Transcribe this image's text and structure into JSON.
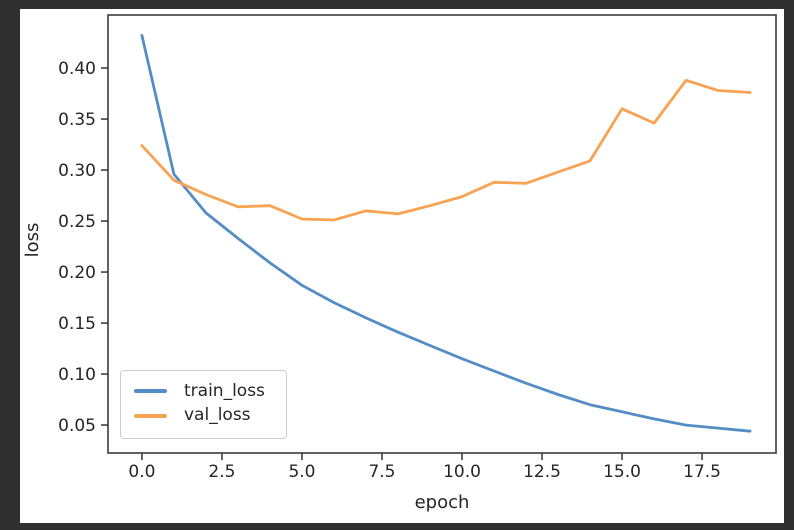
{
  "window": {
    "background": "#303030",
    "figure_background": "#ffffff",
    "text_color": "#262626"
  },
  "chart_data": {
    "type": "line",
    "title": "",
    "xlabel": "epoch",
    "ylabel": "loss",
    "grid": false,
    "legend_position": "lower left",
    "xlim": [
      -1.06,
      19.81
    ],
    "ylim": [
      0.0226,
      0.452
    ],
    "xticks": [
      0.0,
      2.5,
      5.0,
      7.5,
      10.0,
      12.5,
      15.0,
      17.5
    ],
    "xtick_labels": [
      "0.0",
      "2.5",
      "5.0",
      "7.5",
      "10.0",
      "12.5",
      "15.0",
      "17.5"
    ],
    "yticks": [
      0.05,
      0.1,
      0.15,
      0.2,
      0.25,
      0.3,
      0.35,
      0.4
    ],
    "ytick_labels": [
      "0.05",
      "0.10",
      "0.15",
      "0.20",
      "0.25",
      "0.30",
      "0.35",
      "0.40"
    ],
    "x": [
      0,
      1,
      2,
      3,
      4,
      5,
      6,
      7,
      8,
      9,
      10,
      11,
      12,
      13,
      14,
      15,
      16,
      17,
      18,
      19
    ],
    "series": [
      {
        "name": "train_loss",
        "color": "#548dc6",
        "values": [
          0.432,
          0.296,
          0.258,
          0.233,
          0.209,
          0.187,
          0.17,
          0.155,
          0.141,
          0.128,
          0.115,
          0.103,
          0.091,
          0.08,
          0.07,
          0.063,
          0.056,
          0.05,
          0.047,
          0.044
        ]
      },
      {
        "name": "val_loss",
        "color": "#f8a254",
        "values": [
          0.324,
          0.29,
          0.276,
          0.264,
          0.265,
          0.252,
          0.251,
          0.26,
          0.257,
          0.265,
          0.274,
          0.288,
          0.287,
          0.298,
          0.309,
          0.36,
          0.346,
          0.388,
          0.378,
          0.376
        ]
      }
    ]
  }
}
